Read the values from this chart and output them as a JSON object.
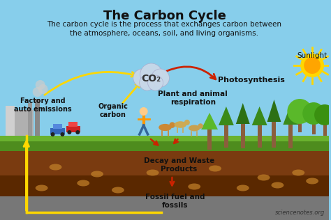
{
  "title": "The Carbon Cycle",
  "subtitle": "The carbon cycle is the process that exchanges carbon between\nthe atmosphere, oceans, soil, and living organisms.",
  "sky_color": "#87CEEB",
  "labels": {
    "factory": "Factory and\nauto emissions",
    "organic": "Organic\ncarbon",
    "respiration": "Plant and animal\nrespiration",
    "photosynthesis": "Photosynthesis",
    "sunlight": "Sunlight",
    "decay": "Decay and Waste\nProducts",
    "fossil": "Fossil fuel and\nfossils",
    "co2": "CO₂",
    "watermark": "sciencenotes.org"
  },
  "arrow_yellow": "#FFD700",
  "arrow_red": "#CC2200",
  "text_dark": "#111111"
}
